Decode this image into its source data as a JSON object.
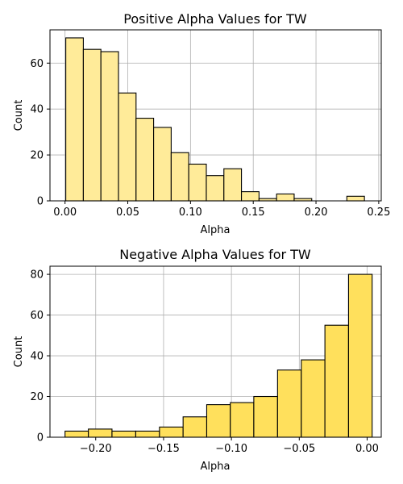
{
  "chart_data": [
    {
      "type": "bar",
      "title": "Positive Alpha Values for TW",
      "xlabel": "Alpha",
      "ylabel": "Count",
      "xlim": [
        -0.012,
        0.252
      ],
      "ylim": [
        0,
        74.5
      ],
      "xticks": [
        0.0,
        0.05,
        0.1,
        0.15,
        0.2,
        0.25
      ],
      "xtick_labels": [
        "0.00",
        "0.05",
        "0.10",
        "0.15",
        "0.20",
        "0.25"
      ],
      "yticks": [
        0,
        20,
        40,
        60
      ],
      "ytick_labels": [
        "0",
        "20",
        "40",
        "60"
      ],
      "grid": true,
      "bar_color": "#ffeb99",
      "edge_color": "#000000",
      "bins": [
        {
          "x0": 0.0006,
          "x1": 0.0146,
          "value": 71
        },
        {
          "x0": 0.0146,
          "x1": 0.0286,
          "value": 66
        },
        {
          "x0": 0.0286,
          "x1": 0.0426,
          "value": 65
        },
        {
          "x0": 0.0426,
          "x1": 0.0566,
          "value": 47
        },
        {
          "x0": 0.0566,
          "x1": 0.0706,
          "value": 36
        },
        {
          "x0": 0.0706,
          "x1": 0.0846,
          "value": 32
        },
        {
          "x0": 0.0846,
          "x1": 0.0986,
          "value": 21
        },
        {
          "x0": 0.0986,
          "x1": 0.1126,
          "value": 16
        },
        {
          "x0": 0.1126,
          "x1": 0.1266,
          "value": 11
        },
        {
          "x0": 0.1266,
          "x1": 0.1406,
          "value": 14
        },
        {
          "x0": 0.1406,
          "x1": 0.1546,
          "value": 4
        },
        {
          "x0": 0.1546,
          "x1": 0.1686,
          "value": 1
        },
        {
          "x0": 0.1686,
          "x1": 0.1826,
          "value": 3
        },
        {
          "x0": 0.1826,
          "x1": 0.1966,
          "value": 1
        },
        {
          "x0": 0.1966,
          "x1": 0.2106,
          "value": 0
        },
        {
          "x0": 0.2106,
          "x1": 0.2246,
          "value": 0
        },
        {
          "x0": 0.2246,
          "x1": 0.2386,
          "value": 2
        }
      ]
    },
    {
      "type": "bar",
      "title": "Negative Alpha Values for TW",
      "xlabel": "Alpha",
      "ylabel": "Count",
      "xlim": [
        -0.2337,
        0.0104
      ],
      "ylim": [
        0,
        84
      ],
      "xticks": [
        -0.2,
        -0.15,
        -0.1,
        -0.05,
        0.0
      ],
      "xtick_labels": [
        "−0.20",
        "−0.15",
        "−0.10",
        "−0.05",
        "0.00"
      ],
      "yticks": [
        0,
        20,
        40,
        60,
        80
      ],
      "ytick_labels": [
        "0",
        "20",
        "40",
        "60",
        "80"
      ],
      "grid": true,
      "bar_color": "#ffe05c",
      "edge_color": "#000000",
      "bins": [
        {
          "x0": -0.2226,
          "x1": -0.2054,
          "value": 3
        },
        {
          "x0": -0.2054,
          "x1": -0.188,
          "value": 4
        },
        {
          "x0": -0.188,
          "x1": -0.1705,
          "value": 3
        },
        {
          "x0": -0.1705,
          "x1": -0.153,
          "value": 3
        },
        {
          "x0": -0.153,
          "x1": -0.1356,
          "value": 5
        },
        {
          "x0": -0.1356,
          "x1": -0.1182,
          "value": 10
        },
        {
          "x0": -0.1182,
          "x1": -0.1008,
          "value": 16
        },
        {
          "x0": -0.1008,
          "x1": -0.0835,
          "value": 17
        },
        {
          "x0": -0.0835,
          "x1": -0.066,
          "value": 20
        },
        {
          "x0": -0.066,
          "x1": -0.0485,
          "value": 33
        },
        {
          "x0": -0.0485,
          "x1": -0.0311,
          "value": 38
        },
        {
          "x0": -0.0311,
          "x1": -0.0137,
          "value": 55
        },
        {
          "x0": -0.0137,
          "x1": 0.0037,
          "value": 80
        }
      ]
    }
  ]
}
